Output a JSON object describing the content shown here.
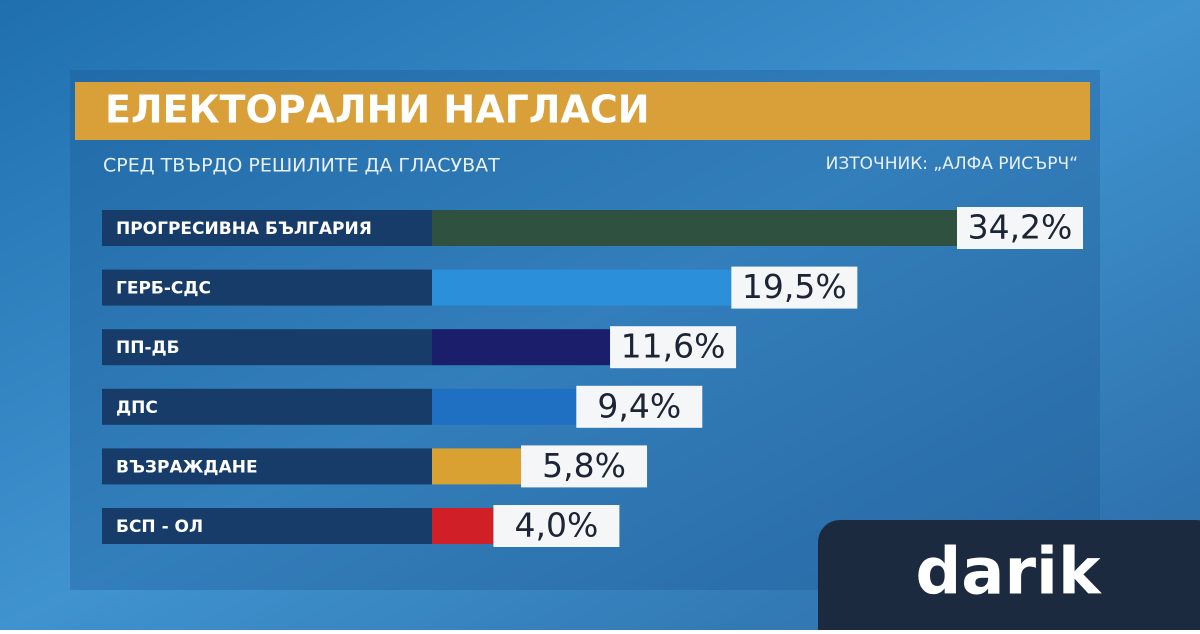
{
  "chart_data": {
    "type": "hbar",
    "title": "ЕЛЕКТОРАЛНИ НАГЛАСИ",
    "subtitle": "СРЕД ТВЪРДО РЕШИЛИТЕ ДА ГЛАСУВАТ",
    "source": "ИЗТОЧНИК: „АЛФА РИСЪРЧ“",
    "categories": [
      "ПРОГРЕСИВНА БЪЛГАРИЯ",
      "ГЕРБ-СДС",
      "ПП-ДБ",
      "ДПС",
      "ВЪЗРАЖДАНЕ",
      "БСП - ОЛ"
    ],
    "values": [
      34.2,
      19.5,
      11.6,
      9.4,
      5.8,
      4.0
    ],
    "value_labels": [
      "34,2%",
      "19,5%",
      "11,6%",
      "9,4%",
      "5,8%",
      "4,0%"
    ],
    "colors": [
      "#2f5240",
      "#2b8fd9",
      "#1a1e6b",
      "#1f70c2",
      "#d9a032",
      "#d11f28"
    ]
  },
  "logo": "darik"
}
